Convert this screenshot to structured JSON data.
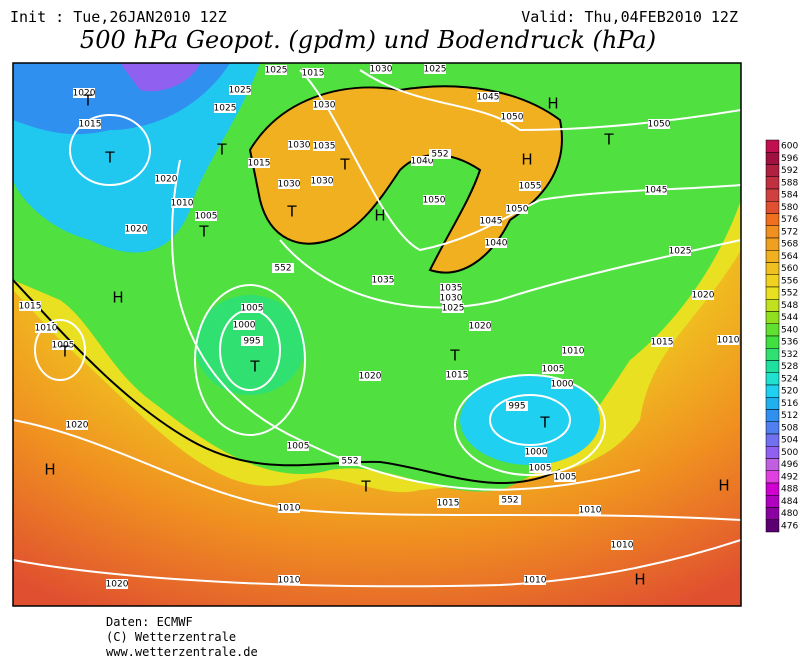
{
  "header": {
    "init": "Init : Tue,26JAN2010 12Z",
    "valid": "Valid: Thu,04FEB2010 12Z",
    "title": "500 hPa Geopot. (gpdm) und Bodendruck (hPa)"
  },
  "colorbar": {
    "values": [
      600,
      596,
      592,
      588,
      584,
      580,
      576,
      572,
      568,
      564,
      560,
      556,
      552,
      548,
      544,
      540,
      536,
      532,
      528,
      524,
      520,
      516,
      512,
      508,
      504,
      500,
      496,
      492,
      488,
      484,
      480,
      476
    ],
    "colors": [
      "#c01050",
      "#a01040",
      "#b02040",
      "#c03040",
      "#d04040",
      "#e05030",
      "#f07020",
      "#f09020",
      "#f0a020",
      "#f0b020",
      "#f0c020",
      "#f0d020",
      "#e8e020",
      "#c0e020",
      "#90e020",
      "#60e030",
      "#40e040",
      "#30e070",
      "#20e0a0",
      "#20e0d0",
      "#20d0f0",
      "#20b0f0",
      "#3090f0",
      "#5080f0",
      "#7070f0",
      "#9060f0",
      "#c060e0",
      "#e040e0",
      "#d000d0",
      "#b000c0",
      "#8a00a0",
      "#5a0070"
    ]
  },
  "map": {
    "labels": [
      "1020",
      "T",
      "1015",
      "T",
      "1020",
      "1010",
      "1005",
      "T",
      "1020",
      "H",
      "1015",
      "1010",
      "1005",
      "T",
      "1005",
      "1000",
      "995",
      "T",
      "1020",
      "H",
      "1020",
      "1005",
      "1010",
      "552",
      "T",
      "1015",
      "552",
      "1010",
      "1010",
      "H",
      "H",
      "1005",
      "1005",
      "1000",
      "995",
      "T",
      "1000",
      "1005",
      "1010",
      "1015",
      "T",
      "1020",
      "1035",
      "1035",
      "1030",
      "1025",
      "1020",
      "1040",
      "1045",
      "1050",
      "1055",
      "H",
      "1050",
      "1045",
      "H",
      "T",
      "1050",
      "1045",
      "1025",
      "1020",
      "1015",
      "1010",
      "H",
      "1050",
      "1040",
      "552",
      "1030",
      "1025",
      "1025",
      "1015",
      "1025",
      "1025",
      "1030",
      "1035",
      "1030",
      "1030",
      "1030",
      "T",
      "T",
      "1015",
      "T",
      "552",
      "1010",
      "1010"
    ]
  },
  "footer": {
    "lines": [
      "Daten: ECMWF",
      "(C) Wetterzentrale",
      "www.wetterzentrale.de"
    ]
  }
}
